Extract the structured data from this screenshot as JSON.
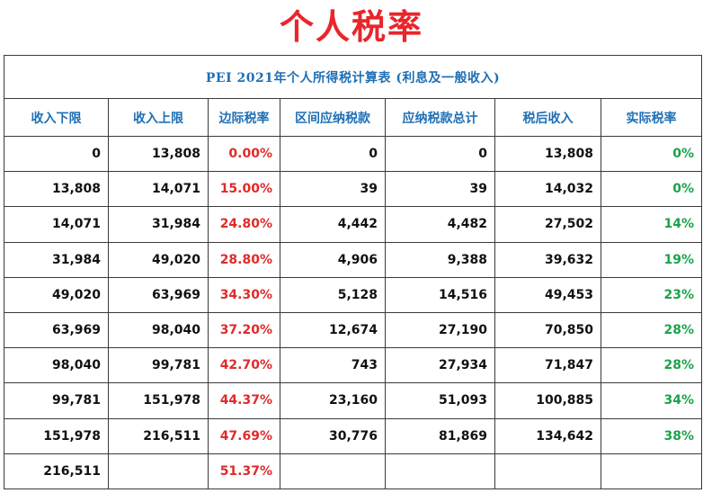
{
  "title": "个人税率",
  "table": {
    "caption": "PEI 2021年个人所得税计算表 (利息及一般收入)",
    "headers": [
      "收入下限",
      "收入上限",
      "边际税率",
      "区间应纳税款",
      "应纳税款总计",
      "税后收入",
      "实际税率"
    ],
    "rows": [
      [
        "0",
        "13,808",
        "0.00%",
        "0",
        "0",
        "13,808",
        "0%"
      ],
      [
        "13,808",
        "14,071",
        "15.00%",
        "39",
        "39",
        "14,032",
        "0%"
      ],
      [
        "14,071",
        "31,984",
        "24.80%",
        "4,442",
        "4,482",
        "27,502",
        "14%"
      ],
      [
        "31,984",
        "49,020",
        "28.80%",
        "4,906",
        "9,388",
        "39,632",
        "19%"
      ],
      [
        "49,020",
        "63,969",
        "34.30%",
        "5,128",
        "14,516",
        "49,453",
        "23%"
      ],
      [
        "63,969",
        "98,040",
        "37.20%",
        "12,674",
        "27,190",
        "70,850",
        "28%"
      ],
      [
        "98,040",
        "99,781",
        "42.70%",
        "743",
        "27,934",
        "71,847",
        "28%"
      ],
      [
        "99,781",
        "151,978",
        "44.37%",
        "23,160",
        "51,093",
        "100,885",
        "34%"
      ],
      [
        "151,978",
        "216,511",
        "47.69%",
        "30,776",
        "81,869",
        "134,642",
        "38%"
      ],
      [
        "216,511",
        "",
        "51.37%",
        "",
        "",
        "",
        ""
      ]
    ]
  },
  "colors": {
    "title": "#e8262b",
    "header": "#1f6fb5",
    "marginal_rate": "#e02a2a",
    "effective_rate": "#1aa34a"
  }
}
